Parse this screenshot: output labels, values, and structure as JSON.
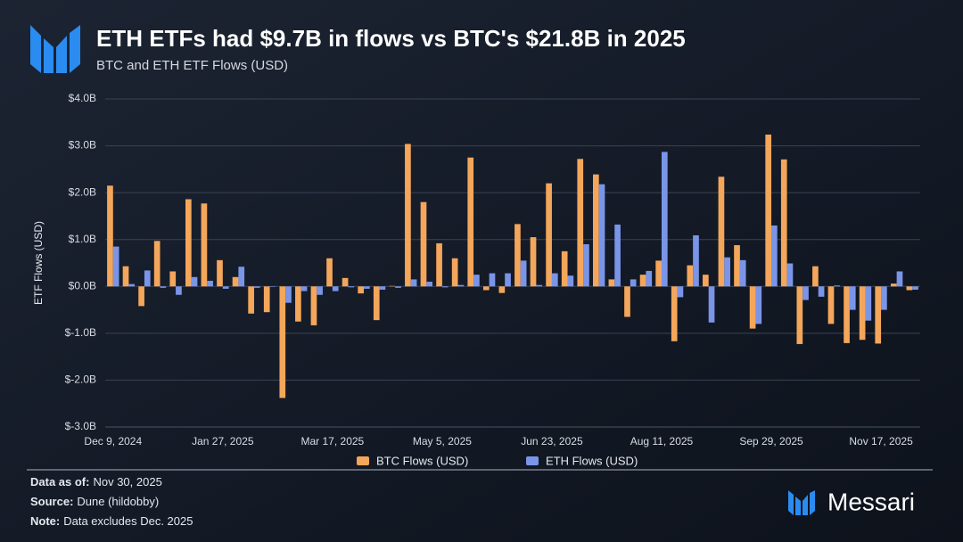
{
  "chart_data": {
    "type": "bar",
    "title": "ETH ETFs had $9.7B in flows vs BTC's $21.8B in 2025",
    "subtitle": "BTC and ETH ETF Flows (USD)",
    "y_label": "ETF Flows (USD)",
    "categories": [
      "Dec 9, 2024",
      null,
      null,
      null,
      null,
      null,
      null,
      "Jan 27, 2025",
      null,
      null,
      null,
      null,
      null,
      null,
      "Mar 17, 2025",
      null,
      null,
      null,
      null,
      null,
      null,
      "May 5, 2025",
      null,
      null,
      null,
      null,
      null,
      null,
      "Jun 23, 2025",
      null,
      null,
      null,
      null,
      null,
      null,
      "Aug 11, 2025",
      null,
      null,
      null,
      null,
      null,
      null,
      "Sep 29, 2025",
      null,
      null,
      null,
      null,
      null,
      null,
      "Nov 17, 2025",
      null,
      null
    ],
    "series": [
      {
        "name": "BTC Flows (USD)",
        "color": "#f4a65b",
        "values": [
          2.15,
          0.43,
          -0.42,
          0.97,
          0.32,
          1.86,
          1.77,
          0.56,
          0.2,
          -0.58,
          -0.55,
          -2.38,
          -0.75,
          -0.83,
          0.6,
          0.18,
          -0.15,
          -0.72,
          0.01,
          3.04,
          1.8,
          0.92,
          0.6,
          2.75,
          -0.08,
          -0.14,
          1.33,
          1.05,
          2.2,
          0.75,
          2.72,
          2.39,
          0.15,
          -0.65,
          0.25,
          0.55,
          -1.17,
          0.45,
          0.25,
          2.34,
          0.88,
          -0.9,
          3.24,
          2.71,
          -1.23,
          0.43,
          -0.8,
          -1.21,
          -1.14,
          -1.22,
          0.06,
          -0.08
        ]
      },
      {
        "name": "ETH Flows (USD)",
        "color": "#7a95e8",
        "values": [
          0.85,
          0.05,
          0.34,
          -0.03,
          -0.18,
          0.2,
          0.12,
          -0.05,
          0.42,
          -0.03,
          -0.01,
          -0.35,
          -0.1,
          -0.18,
          -0.1,
          -0.02,
          -0.05,
          -0.07,
          -0.03,
          0.15,
          0.1,
          -0.02,
          0.03,
          0.25,
          0.28,
          0.28,
          0.55,
          0.03,
          0.28,
          0.23,
          0.9,
          2.18,
          1.32,
          0.15,
          0.33,
          2.87,
          -0.23,
          1.09,
          -0.77,
          0.62,
          0.56,
          -0.8,
          1.3,
          0.49,
          -0.29,
          -0.22,
          0.02,
          -0.5,
          -0.73,
          -0.5,
          0.32,
          -0.07
        ]
      }
    ],
    "ylim": [
      -3,
      4
    ],
    "yticks": [
      {
        "value": -3,
        "label": "$-3.0B"
      },
      {
        "value": -2,
        "label": "$-2.0B"
      },
      {
        "value": -1,
        "label": "$-1.0B"
      },
      {
        "value": 0,
        "label": "$0.0B"
      },
      {
        "value": 1,
        "label": "$1.0B"
      },
      {
        "value": 2,
        "label": "$2.0B"
      },
      {
        "value": 3,
        "label": "$3.0B"
      },
      {
        "value": 4,
        "label": "$4.0B"
      }
    ],
    "grid": true,
    "legend": "bottom"
  },
  "footer": {
    "notes": [
      {
        "label": "Data as of:",
        "text": "Nov 30, 2025"
      },
      {
        "label": "Source:",
        "text": "Dune (hildobby)"
      },
      {
        "label": "Note:",
        "text": "Data excludes Dec. 2025"
      }
    ],
    "brand": "Messari"
  }
}
